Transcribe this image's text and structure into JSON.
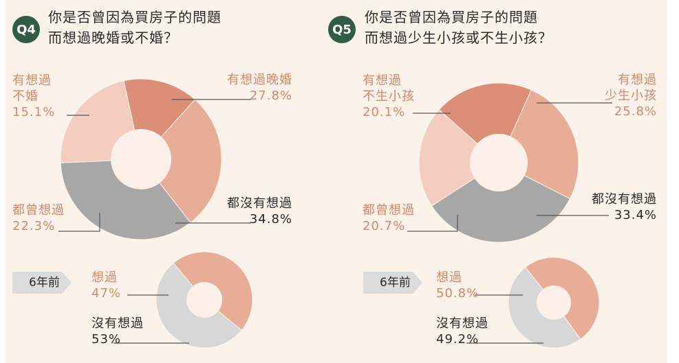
{
  "colors": {
    "background": "#fbf3ea",
    "slice_light_salmon": "#e8ad97",
    "slice_dark_salmon": "#db8f77",
    "slice_pale_pink": "#f2cdc0",
    "slice_gray": "#a7a7a7",
    "slice_light_gray": "#d7d7d7",
    "hole": "#fbf0e8",
    "badge": "#2f5c45",
    "pink_text": "#d9866b",
    "dark_text": "#2a2a2a"
  },
  "q4": {
    "badge": "Q4",
    "title_line1": "你是否曾因為買房子的問題",
    "title_line2": "而想過晚婚或不婚？",
    "tag": "6年前"
  },
  "q5": {
    "badge": "Q5",
    "title_line1": "你是否曾因為買房子的問題",
    "title_line2": "而想過少生小孩或不生小孩？",
    "tag": "6年前"
  },
  "chart_data": [
    {
      "id": "q4-main",
      "type": "pie",
      "title": "你是否曾因為買房子的問題 而想過晚婚或不婚？",
      "series": [
        {
          "name": "有想過晚婚",
          "lines": [
            "有想過晚婚"
          ],
          "pct": "27.8%",
          "value": 27.8,
          "color": "#e8ad97"
        },
        {
          "name": "都沒有想過",
          "lines": [
            "都沒有想過"
          ],
          "pct": "34.8%",
          "value": 34.8,
          "color": "#a7a7a7"
        },
        {
          "name": "都曾想過",
          "lines": [
            "都曾想過"
          ],
          "pct": "22.3%",
          "value": 22.3,
          "color": "#f2cdc0"
        },
        {
          "name": "有想過不婚",
          "lines": [
            "有想過",
            "不婚"
          ],
          "pct": "15.1%",
          "value": 15.1,
          "color": "#db8f77"
        }
      ]
    },
    {
      "id": "q4-past",
      "type": "pie",
      "title": "6年前",
      "series": [
        {
          "name": "想過",
          "lines": [
            "想過"
          ],
          "pct": "47%",
          "value": 47,
          "color": "#e8ad97"
        },
        {
          "name": "沒有想過",
          "lines": [
            "沒有想過"
          ],
          "pct": "53%",
          "value": 53,
          "color": "#d7d7d7"
        }
      ]
    },
    {
      "id": "q5-main",
      "type": "pie",
      "title": "你是否曾因為買房子的問題 而想過少生小孩或不生小孩？",
      "series": [
        {
          "name": "有想過少生小孩",
          "lines": [
            "有想過",
            "少生小孩"
          ],
          "pct": "25.8%",
          "value": 25.8,
          "color": "#e8ad97"
        },
        {
          "name": "都沒有想過",
          "lines": [
            "都沒有想過"
          ],
          "pct": "33.4%",
          "value": 33.4,
          "color": "#a7a7a7"
        },
        {
          "name": "都曾想過",
          "lines": [
            "都曾想過"
          ],
          "pct": "20.7%",
          "value": 20.7,
          "color": "#f2cdc0"
        },
        {
          "name": "有想過不生小孩",
          "lines": [
            "有想過",
            "不生小孩"
          ],
          "pct": "20.1%",
          "value": 20.1,
          "color": "#db8f77"
        }
      ]
    },
    {
      "id": "q5-past",
      "type": "pie",
      "title": "6年前",
      "series": [
        {
          "name": "想過",
          "lines": [
            "想過"
          ],
          "pct": "50.8%",
          "value": 50.8,
          "color": "#e8ad97"
        },
        {
          "name": "沒有想過",
          "lines": [
            "沒有想過"
          ],
          "pct": "49.2%",
          "value": 49.2,
          "color": "#d7d7d7"
        }
      ]
    }
  ]
}
